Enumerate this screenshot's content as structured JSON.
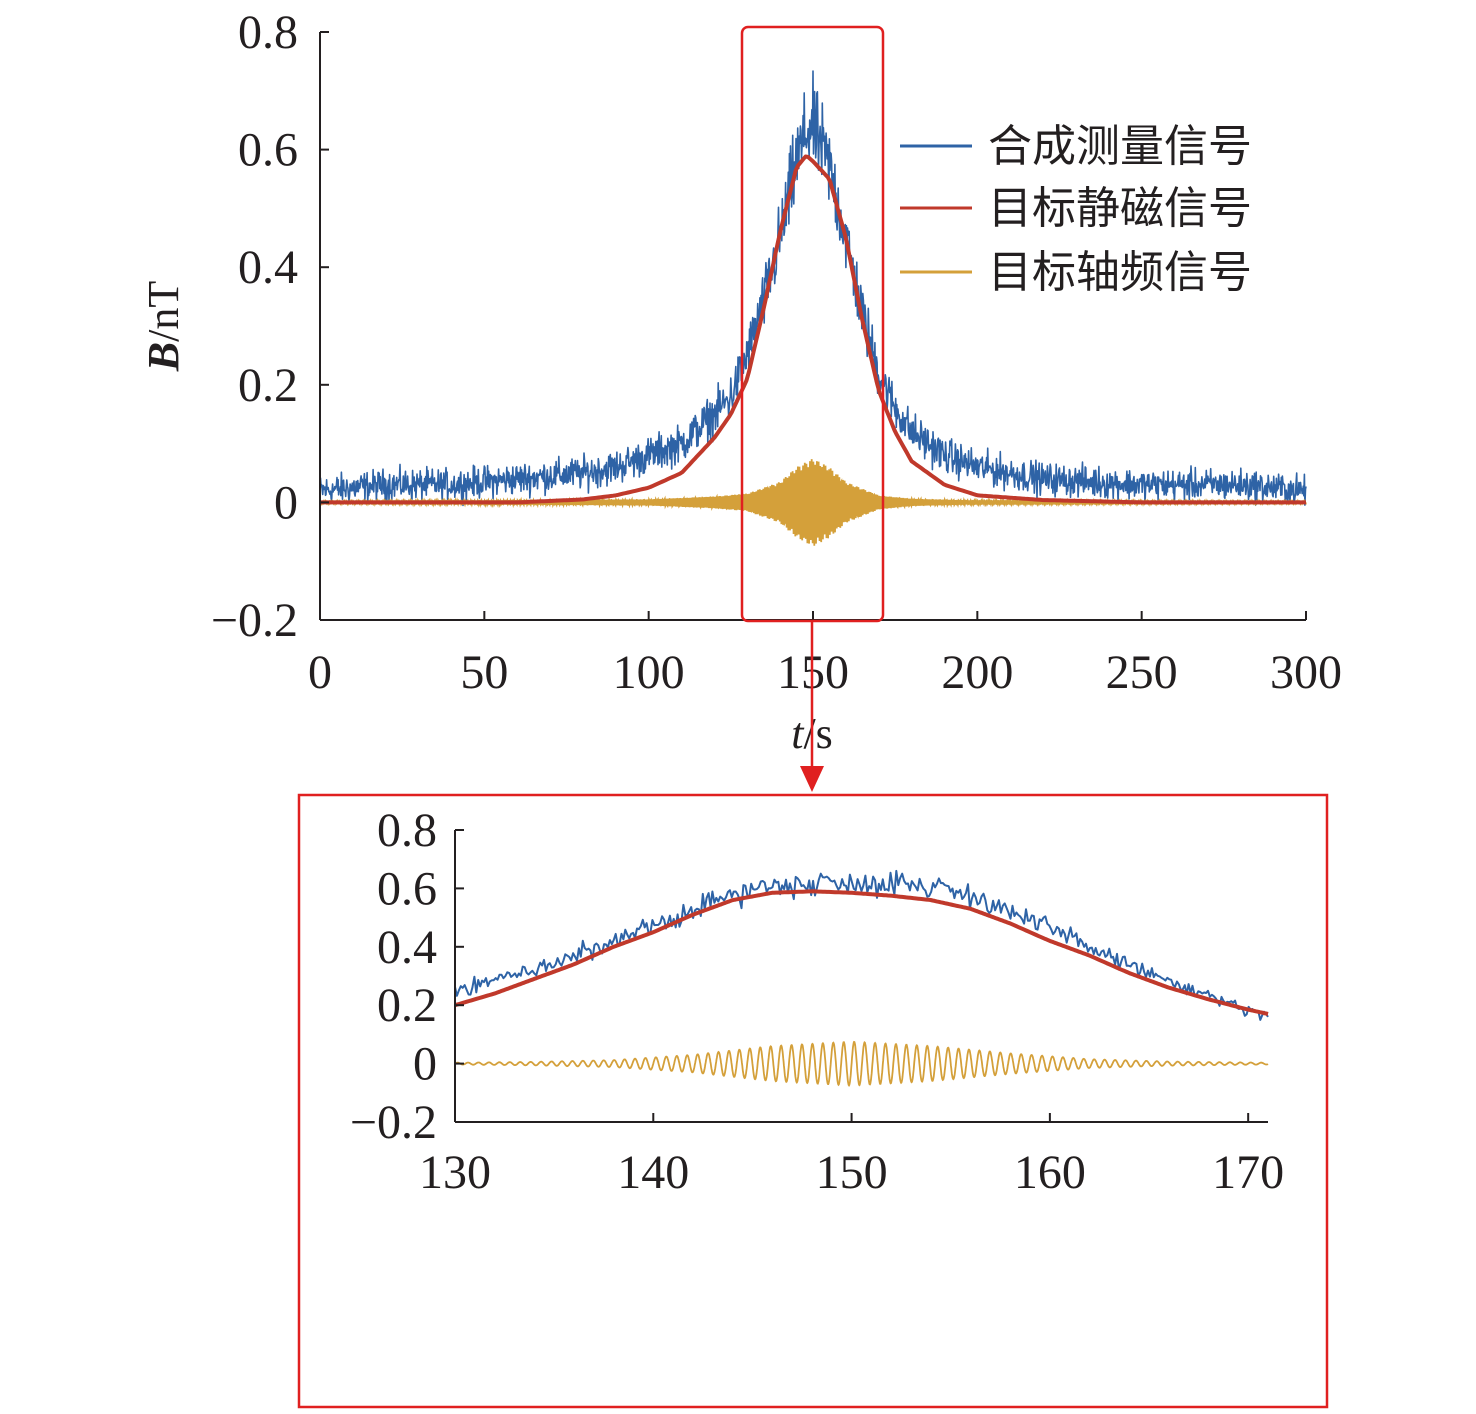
{
  "colors": {
    "measured": "#2e63a6",
    "static": "#c0392b",
    "shaft": "#d4a03a",
    "highlight": "#e02020",
    "axis": "#231f20"
  },
  "chart_data": [
    {
      "type": "line",
      "title": "",
      "xlabel_italic": "t",
      "xlabel_unit": "/s",
      "ylabel_bold": "B",
      "ylabel_unit": "/nT",
      "xlim": [
        0,
        300
      ],
      "ylim": [
        -0.2,
        0.8
      ],
      "x_ticks": [
        "0",
        "50",
        "100",
        "150",
        "200",
        "250",
        "300"
      ],
      "x_tick_values": [
        0,
        50,
        100,
        150,
        200,
        250,
        300
      ],
      "y_ticks": [
        "−0.2",
        "0",
        "0.2",
        "0.4",
        "0.6",
        "0.8"
      ],
      "y_tick_values": [
        -0.2,
        0,
        0.2,
        0.4,
        0.6,
        0.8
      ],
      "legend_position": "top-right",
      "highlight_range": [
        130,
        172
      ],
      "series": [
        {
          "name": "合成测量信号",
          "key": "measured",
          "x": [
            0,
            20,
            40,
            60,
            80,
            90,
            100,
            110,
            120,
            125,
            130,
            135,
            140,
            145,
            148,
            150,
            155,
            160,
            165,
            170,
            175,
            180,
            190,
            200,
            220,
            250,
            280,
            300
          ],
          "values": [
            0.02,
            0.03,
            0.03,
            0.04,
            0.05,
            0.06,
            0.08,
            0.1,
            0.15,
            0.18,
            0.25,
            0.34,
            0.45,
            0.58,
            0.63,
            0.64,
            0.57,
            0.45,
            0.32,
            0.22,
            0.16,
            0.12,
            0.08,
            0.06,
            0.04,
            0.03,
            0.03,
            0.02
          ]
        },
        {
          "name": "目标静磁信号",
          "key": "static",
          "x": [
            0,
            20,
            40,
            60,
            80,
            90,
            100,
            110,
            120,
            125,
            130,
            135,
            140,
            145,
            148,
            150,
            155,
            160,
            165,
            170,
            175,
            180,
            190,
            200,
            220,
            250,
            280,
            300
          ],
          "values": [
            0.0,
            0.0,
            0.0,
            0.0,
            0.005,
            0.012,
            0.025,
            0.05,
            0.11,
            0.15,
            0.21,
            0.33,
            0.46,
            0.57,
            0.59,
            0.58,
            0.55,
            0.45,
            0.31,
            0.19,
            0.12,
            0.07,
            0.03,
            0.012,
            0.004,
            0.0,
            0.0,
            0.0
          ]
        },
        {
          "name": "目标轴频信号",
          "key": "shaft",
          "x": [
            0,
            100,
            120,
            130,
            140,
            145,
            150,
            155,
            160,
            170,
            180,
            200,
            300
          ],
          "envelope": [
            0.002,
            0.005,
            0.01,
            0.015,
            0.035,
            0.06,
            0.075,
            0.06,
            0.035,
            0.012,
            0.006,
            0.003,
            0.002
          ]
        }
      ]
    },
    {
      "type": "line",
      "title": "",
      "xlim": [
        130,
        171
      ],
      "ylim": [
        -0.2,
        0.8
      ],
      "x_ticks": [
        "130",
        "140",
        "150",
        "160",
        "170"
      ],
      "x_tick_values": [
        130,
        140,
        150,
        160,
        170
      ],
      "y_ticks": [
        "−0.2",
        "0",
        "0.2",
        "0.4",
        "0.6",
        "0.8"
      ],
      "y_tick_values": [
        -0.2,
        0,
        0.2,
        0.4,
        0.6,
        0.8
      ],
      "series": [
        {
          "name": "合成测量信号",
          "key": "measured",
          "x": [
            130,
            132,
            134,
            136,
            138,
            140,
            142,
            144,
            146,
            148,
            150,
            152,
            154,
            156,
            158,
            160,
            162,
            164,
            166,
            168,
            170,
            171
          ],
          "values": [
            0.25,
            0.29,
            0.32,
            0.37,
            0.41,
            0.47,
            0.53,
            0.58,
            0.61,
            0.62,
            0.62,
            0.62,
            0.61,
            0.58,
            0.52,
            0.46,
            0.4,
            0.34,
            0.28,
            0.23,
            0.18,
            0.16
          ]
        },
        {
          "name": "目标静磁信号",
          "key": "static",
          "x": [
            130,
            132,
            134,
            136,
            138,
            140,
            142,
            144,
            146,
            148,
            150,
            152,
            154,
            156,
            158,
            160,
            162,
            164,
            166,
            168,
            170,
            171
          ],
          "values": [
            0.2,
            0.24,
            0.29,
            0.34,
            0.4,
            0.45,
            0.51,
            0.56,
            0.585,
            0.59,
            0.585,
            0.575,
            0.56,
            0.53,
            0.48,
            0.42,
            0.37,
            0.31,
            0.26,
            0.22,
            0.185,
            0.17
          ]
        },
        {
          "name": "目标轴频信号",
          "key": "shaft",
          "x": [
            130,
            134,
            138,
            142,
            146,
            150,
            154,
            158,
            162,
            166,
            171
          ],
          "envelope": [
            0.003,
            0.006,
            0.012,
            0.03,
            0.06,
            0.075,
            0.06,
            0.035,
            0.015,
            0.007,
            0.003
          ]
        }
      ]
    }
  ]
}
